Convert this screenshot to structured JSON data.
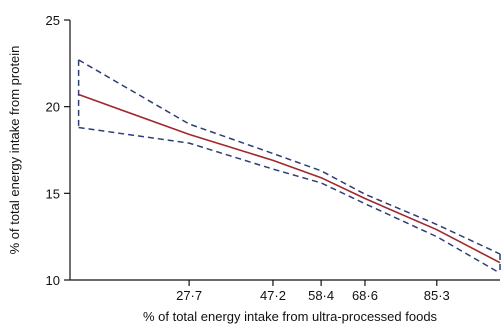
{
  "chart_data": {
    "type": "line",
    "title": "",
    "xlabel": "% of total energy intake from ultra-processed foods",
    "ylabel": "% of total energy intake from protein",
    "xlim": [
      0,
      100
    ],
    "ylim": [
      10,
      25
    ],
    "x_ticks": [
      27.7,
      47.2,
      58.4,
      68.6,
      85.3
    ],
    "x_tick_labels": [
      "27·7",
      "47·2",
      "58·4",
      "68·6",
      "85·3"
    ],
    "y_ticks": [
      10,
      15,
      20,
      25
    ],
    "y_tick_labels": [
      "10",
      "15",
      "20",
      "25"
    ],
    "grid": false,
    "legend": "none",
    "colors": {
      "fit": "#a0282d",
      "ci": "#2c3e73",
      "axis": "#111111"
    },
    "series": [
      {
        "role": "fit",
        "x": [
          2,
          27.7,
          47.2,
          58.4,
          68.6,
          85.3,
          100
        ],
        "y": [
          20.7,
          18.4,
          16.9,
          15.9,
          14.7,
          12.9,
          11.0
        ]
      },
      {
        "role": "ci-upper",
        "x": [
          2,
          27.7,
          47.2,
          58.4,
          68.6,
          85.3,
          100
        ],
        "y": [
          22.7,
          19.0,
          17.3,
          16.3,
          14.95,
          13.2,
          11.5
        ]
      },
      {
        "role": "ci-lower",
        "x": [
          2,
          27.7,
          47.2,
          58.4,
          68.6,
          85.3,
          100
        ],
        "y": [
          18.8,
          17.9,
          16.4,
          15.6,
          14.4,
          12.5,
          10.4
        ]
      }
    ]
  }
}
